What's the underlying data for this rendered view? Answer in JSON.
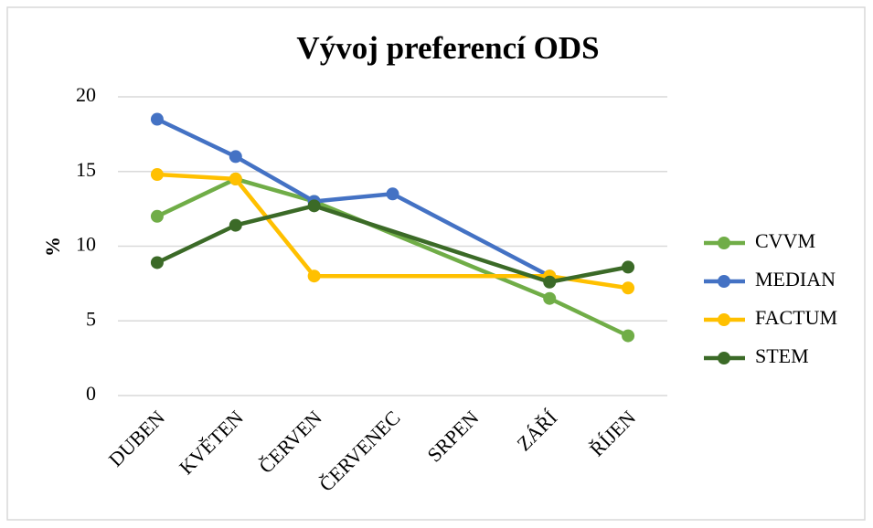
{
  "chart_data": {
    "type": "line",
    "title": "Vývoj preferencí ODS",
    "y_label": "%",
    "categories": [
      "DUBEN",
      "KVĚTEN",
      "ČERVEN",
      "ČERVENEC",
      "SRPEN",
      "ZÁŘÍ",
      "ŘÍJEN"
    ],
    "series": [
      {
        "name": "CVVM",
        "color": "#70ad47",
        "values": [
          12,
          14.5,
          13,
          null,
          null,
          6.5,
          4
        ]
      },
      {
        "name": "MEDIAN",
        "color": "#4472c4",
        "values": [
          18.5,
          16,
          13,
          13.5,
          null,
          8,
          null
        ]
      },
      {
        "name": "FACTUM",
        "color": "#ffc000",
        "values": [
          14.8,
          14.5,
          8,
          null,
          null,
          8,
          7.2
        ]
      },
      {
        "name": "STEM",
        "color": "#3b6a27",
        "values": [
          8.9,
          11.4,
          12.7,
          null,
          null,
          7.6,
          8.6
        ]
      }
    ],
    "ylim": [
      0,
      20
    ],
    "yticks": [
      0,
      5,
      10,
      15,
      20
    ],
    "grid": true,
    "span_gaps": true,
    "legend": "right"
  }
}
